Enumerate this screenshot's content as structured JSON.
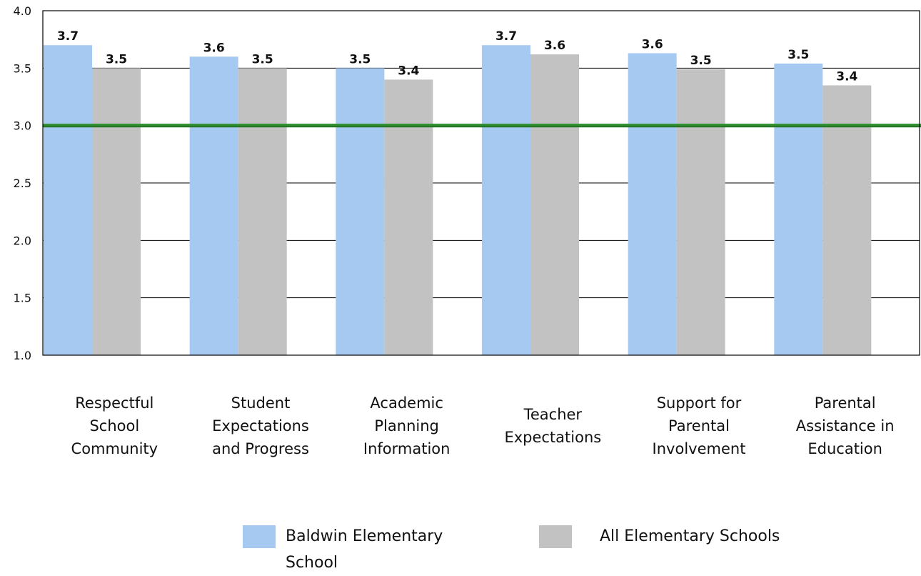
{
  "chart_data": {
    "type": "bar",
    "categories": [
      "Respectful School Community",
      "Student Expectations and Progress",
      "Academic Planning Information",
      "Teacher Expectations",
      "Support for Parental Involvement",
      "Parental Assistance in Education"
    ],
    "series": [
      {
        "name": "Baldwin Elementary School",
        "values": [
          3.7,
          3.6,
          3.5,
          3.7,
          3.63,
          3.54
        ],
        "labels": [
          "3.7",
          "3.6",
          "3.5",
          "3.7",
          "3.6",
          "3.5"
        ],
        "color": "#a6c9f1"
      },
      {
        "name": "All Elementary Schools",
        "values": [
          3.5,
          3.5,
          3.4,
          3.62,
          3.49,
          3.35
        ],
        "labels": [
          "3.5",
          "3.5",
          "3.4",
          "3.6",
          "3.5",
          "3.4"
        ],
        "color": "#c2c2c2"
      }
    ],
    "ylim": [
      1.0,
      4.0
    ],
    "yticks": [
      "1.0",
      "1.5",
      "2.0",
      "2.5",
      "3.0",
      "3.5",
      "4.0"
    ],
    "reference_line": {
      "value": 3.0,
      "color": "#2e8b2e"
    },
    "grid": true,
    "legend_position": "bottom"
  },
  "categories_display": [
    [
      "Respectful",
      "School",
      "Community"
    ],
    [
      "Student",
      "Expectations",
      "and Progress"
    ],
    [
      "Academic",
      "Planning",
      "Information"
    ],
    [
      "Teacher",
      "Expectations"
    ],
    [
      "Support for",
      "Parental",
      "Involvement"
    ],
    [
      "Parental",
      "Assistance in",
      "Education"
    ]
  ],
  "legend": [
    {
      "name": "Baldwin Elementary",
      "name_line2": "School",
      "color": "#a6c9f1"
    },
    {
      "name": "All Elementary Schools",
      "color": "#c2c2c2"
    }
  ]
}
